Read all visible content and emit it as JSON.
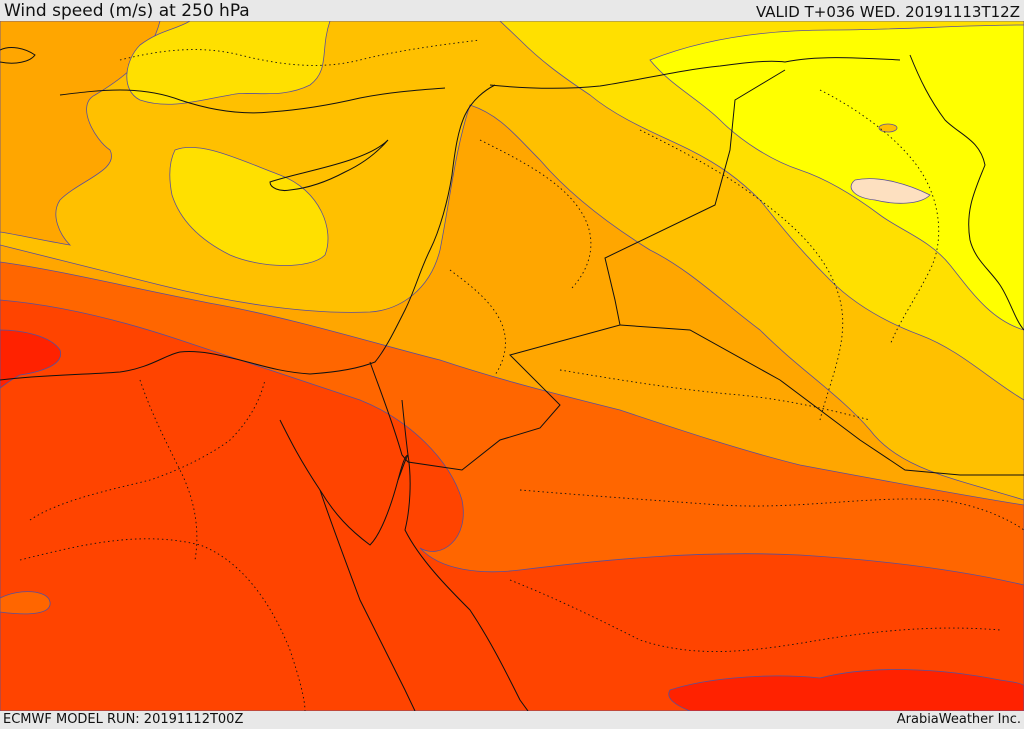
{
  "header": {
    "title": "Wind speed (m/s) at 250 hPa",
    "valid": "VALID T+036 WED. 20191113T12Z"
  },
  "footer": {
    "model_run": "ECMWF MODEL RUN: 20191112T00Z",
    "credit": "ArabiaWeather Inc."
  },
  "map": {
    "field": "wind speed 250 hPa",
    "palette": {
      "weakest": "#ffff00",
      "weak": "#ffe000",
      "light": "#ffc000",
      "moderate": "#ffa600",
      "strong": "#ff8a00",
      "stronger": "#ff6600",
      "very_strong": "#ff4400",
      "core": "#ff2200",
      "minimum_pocket": "#fde0c0",
      "contour_line": "#5a4f9a",
      "border_line": "#111111"
    }
  }
}
